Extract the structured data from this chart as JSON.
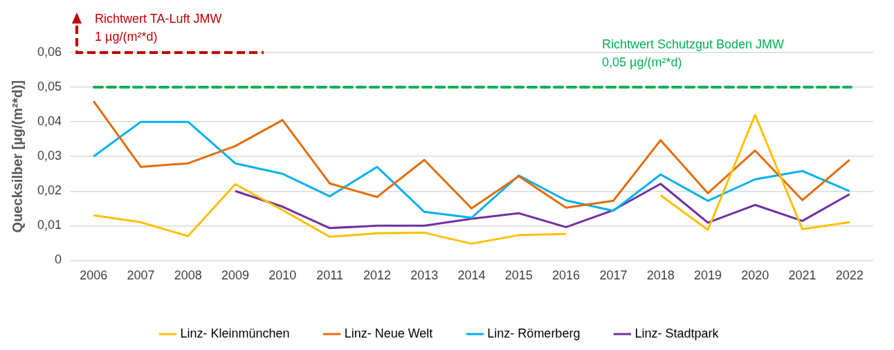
{
  "chart_data": {
    "type": "line",
    "ylabel": "Quecksilber [µg/(m²*d)]",
    "categories": [
      "2006",
      "2007",
      "2008",
      "2009",
      "2010",
      "2011",
      "2012",
      "2013",
      "2014",
      "2015",
      "2016",
      "2017",
      "2018",
      "2019",
      "2020",
      "2021",
      "2022"
    ],
    "series": [
      {
        "name": "Linz- Kleinmünchen",
        "color": "#ffc000",
        "values": [
          0.013,
          0.011,
          0.007,
          0.022,
          0.0145,
          0.0068,
          0.0078,
          0.008,
          0.0048,
          0.0073,
          0.0076,
          null,
          0.0188,
          0.0088,
          0.042,
          0.009,
          0.011
        ]
      },
      {
        "name": "Linz- Neue Welt",
        "color": "#e46c0a",
        "values": [
          0.046,
          0.027,
          0.028,
          0.033,
          0.0405,
          0.0222,
          0.0183,
          0.029,
          0.015,
          0.0243,
          0.0152,
          0.0172,
          0.0347,
          0.0194,
          0.0317,
          0.0174,
          0.029
        ]
      },
      {
        "name": "Linz- Römerberg",
        "color": "#00b0f0",
        "values": [
          0.03,
          0.04,
          0.04,
          0.028,
          0.025,
          0.0185,
          0.027,
          0.014,
          0.0123,
          0.0245,
          0.0173,
          0.0143,
          0.0248,
          0.0172,
          0.0234,
          0.0258,
          0.02
        ]
      },
      {
        "name": "Linz- Stadtpark",
        "color": "#7030a0",
        "values": [
          null,
          null,
          null,
          0.02,
          0.0155,
          0.0093,
          0.01,
          0.01,
          0.012,
          0.0136,
          0.0096,
          0.0145,
          0.0221,
          0.0109,
          0.016,
          0.0114,
          0.0191
        ]
      }
    ],
    "ylim": [
      0,
      0.06
    ],
    "yticks": [
      0,
      {
        "value": 0.01,
        "label": "0,01"
      },
      {
        "value": 0.02,
        "label": "0,02"
      },
      {
        "value": 0.03,
        "label": "0,03"
      },
      {
        "value": 0.04,
        "label": "0,04"
      },
      {
        "value": 0.05,
        "label": "0,05"
      },
      {
        "value": 0.06,
        "label": "0,06"
      }
    ],
    "ref_lines": [
      {
        "axis": "y",
        "value": 0.05,
        "label": "Richtwert Schutzgut Boden JMW\n0,05 µg/(m²*d)",
        "color": "#00b050",
        "line_style": "dashed"
      }
    ],
    "annotations": [
      "Richtwert TA-Luft JMW\n1 µg/(m²*d)"
    ],
    "grid": "y",
    "legend": "bottom",
    "marker": "none",
    "line_style": "solid"
  }
}
